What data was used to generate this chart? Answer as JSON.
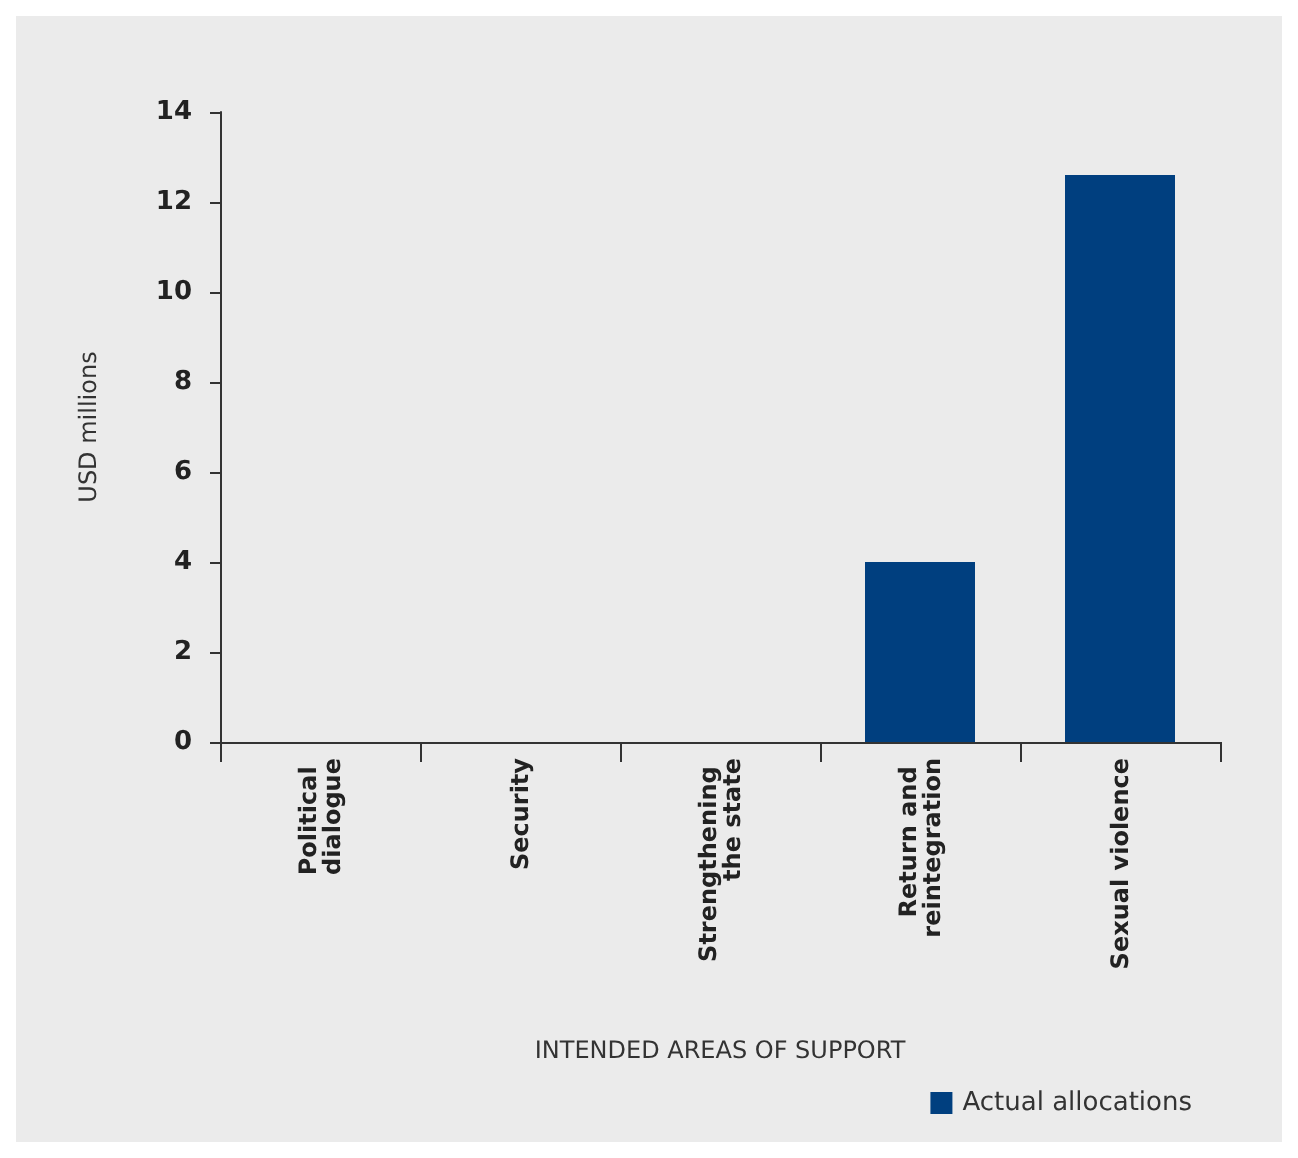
{
  "chart_data": {
    "type": "bar",
    "xlabel": "INTENDED AREAS OF SUPPORT",
    "ylabel": "USD millions",
    "categories": [
      "Political dialogue",
      "Security",
      "Strengthening the state",
      "Return and reintegration",
      "Sexual violence"
    ],
    "series": [
      {
        "name": "Actual allocations",
        "color": "#003f7f",
        "values": [
          0,
          0,
          0,
          4.0,
          12.6
        ]
      }
    ],
    "ylim": [
      0,
      14
    ],
    "yticks": [
      0,
      2,
      4,
      6,
      8,
      10,
      12,
      14
    ],
    "grid": false,
    "legend": "bottom right"
  }
}
